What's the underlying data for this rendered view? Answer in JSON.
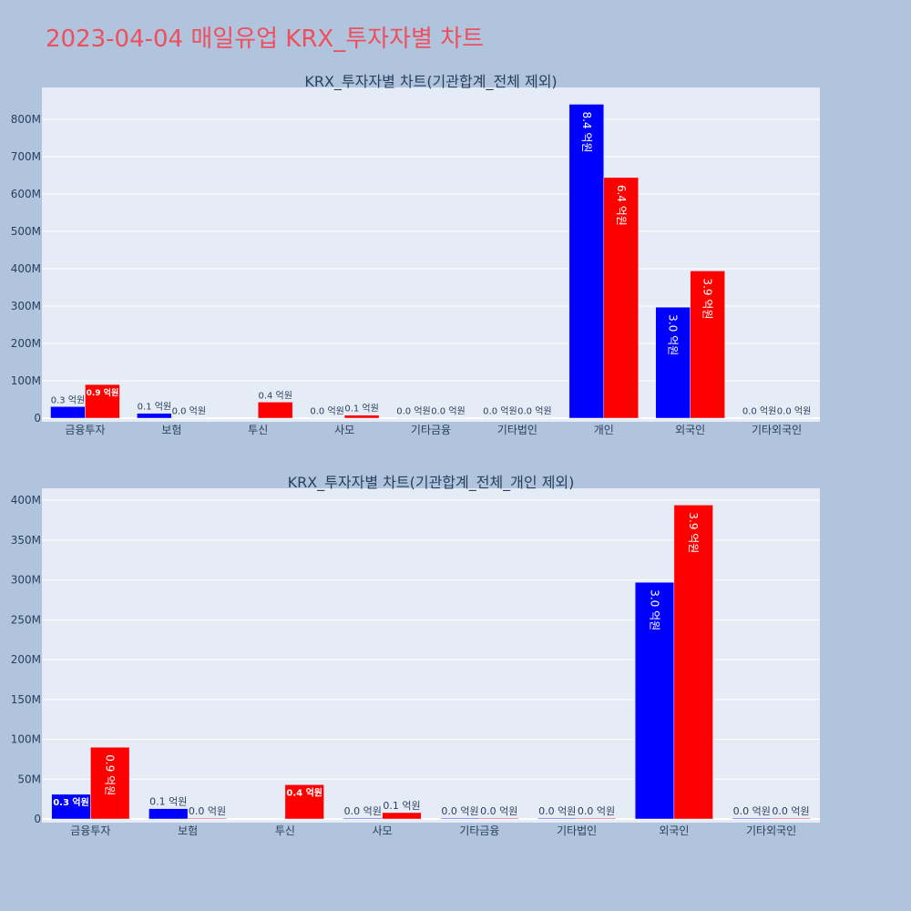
{
  "page": {
    "title": "2023-04-04 매일유업 KRX_투자자별 차트"
  },
  "colors": {
    "buy": "#0000ff",
    "sell": "#ff0000",
    "plot_bg": "#e5ecf6",
    "page_bg": "#b0c4de",
    "title": "#ef4f5d"
  },
  "chart_data": [
    {
      "type": "bar",
      "title": "KRX_투자자별 차트(기관합계_전체 제외)",
      "categories": [
        "금융투자",
        "보험",
        "투신",
        "사모",
        "기타금융",
        "기타법인",
        "개인",
        "외국인",
        "기타외국인"
      ],
      "series": [
        {
          "values": [
            31000000,
            13000000,
            0,
            1000000,
            1000000,
            1000000,
            840000000,
            297000000,
            1000000
          ],
          "labels": [
            "0.3 억원",
            "0.1 억원",
            "",
            "0.0 억원",
            "0.0 억원",
            "0.0 억원",
            "8.4 억원",
            "3.0 억원",
            "0.0 억원"
          ]
        },
        {
          "values": [
            90000000,
            1000000,
            43000000,
            8000000,
            1000000,
            1000000,
            644000000,
            394000000,
            1000000
          ],
          "labels": [
            "0.9 억원",
            "0.0 억원",
            "0.4 억원",
            "0.1 억원",
            "0.0 억원",
            "0.0 억원",
            "6.4 억원",
            "3.9 억원",
            "0.0 억원"
          ]
        }
      ],
      "yticks": [
        0,
        100000000,
        200000000,
        300000000,
        400000000,
        500000000,
        600000000,
        700000000,
        800000000
      ],
      "ytick_labels": [
        "0",
        "100M",
        "200M",
        "300M",
        "400M",
        "500M",
        "600M",
        "700M",
        "800M"
      ],
      "ylim": [
        0,
        885000000
      ],
      "grid": true
    },
    {
      "type": "bar",
      "title": "KRX_투자자별 차트(기관합계_전체_개인 제외)",
      "categories": [
        "금융투자",
        "보험",
        "투신",
        "사모",
        "기타금융",
        "기타법인",
        "외국인",
        "기타외국인"
      ],
      "series": [
        {
          "values": [
            31000000,
            13000000,
            0,
            1000000,
            1000000,
            1000000,
            297000000,
            1000000
          ],
          "labels": [
            "0.3 억원",
            "0.1 억원",
            "",
            "0.0 억원",
            "0.0 억원",
            "0.0 억원",
            "3.0 억원",
            "0.0 억원"
          ]
        },
        {
          "values": [
            90000000,
            1000000,
            43000000,
            8000000,
            1000000,
            1000000,
            394000000,
            1000000
          ],
          "labels": [
            "0.9 억원",
            "0.0 억원",
            "0.4 억원",
            "0.1 억원",
            "0.0 억원",
            "0.0 억원",
            "3.9 억원",
            "0.0 억원"
          ]
        }
      ],
      "yticks": [
        0,
        50000000,
        100000000,
        150000000,
        200000000,
        250000000,
        300000000,
        350000000,
        400000000
      ],
      "ytick_labels": [
        "0",
        "50M",
        "100M",
        "150M",
        "200M",
        "250M",
        "300M",
        "350M",
        "400M"
      ],
      "ylim": [
        0,
        415000000
      ],
      "grid": true
    }
  ]
}
